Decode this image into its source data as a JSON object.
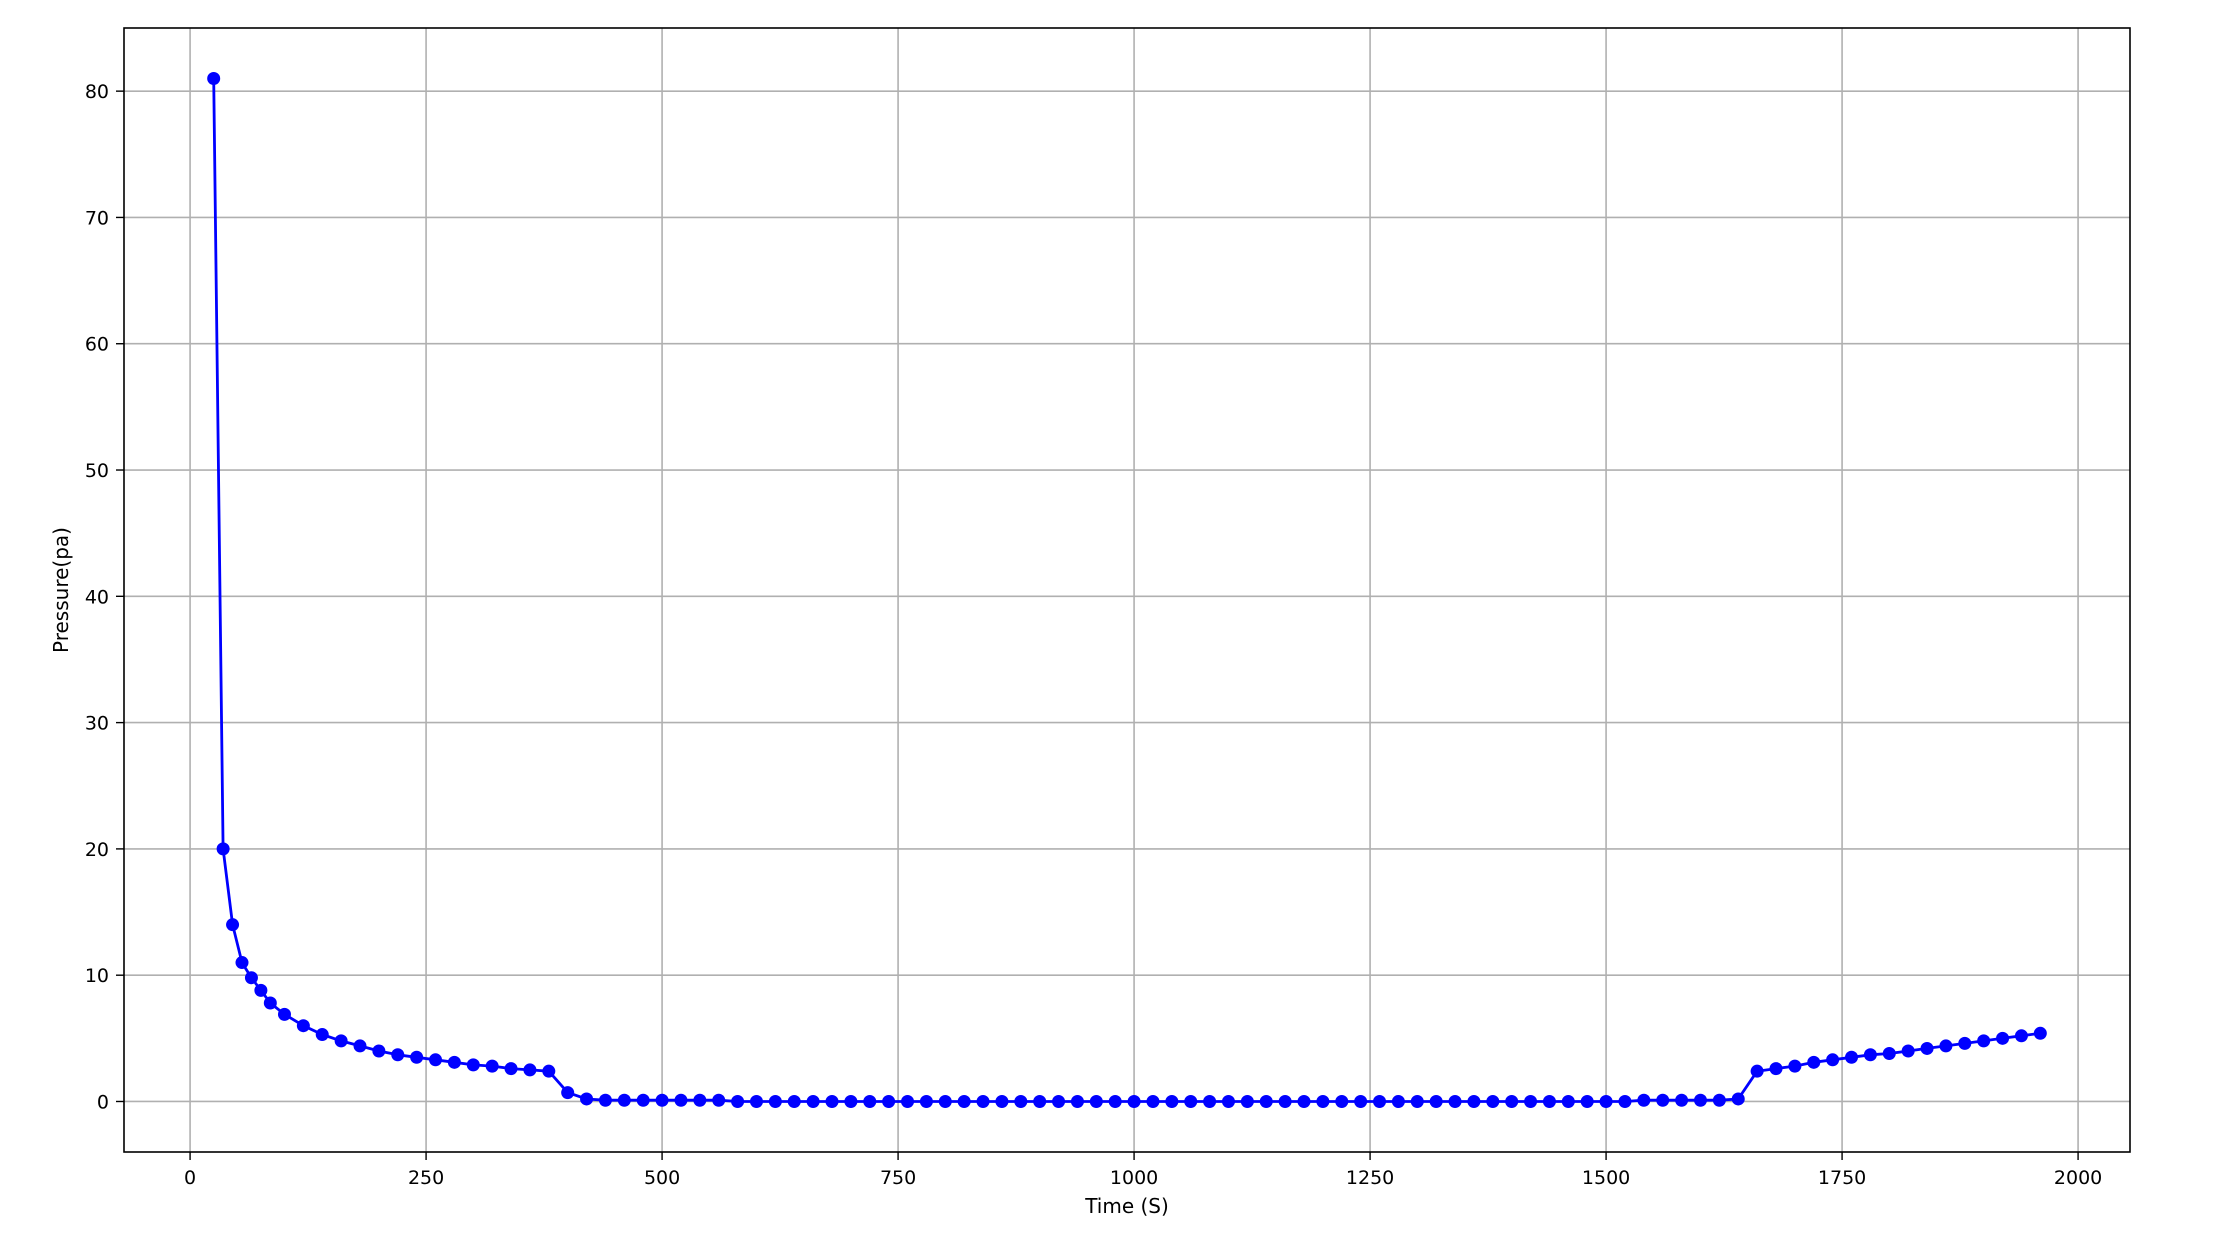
{
  "chart_data": {
    "type": "line",
    "title": "",
    "xlabel": "Time (S)",
    "ylabel": "Pressure(pa)",
    "xlim": [
      -70,
      2055
    ],
    "ylim": [
      -4,
      85
    ],
    "xticks": [
      0,
      250,
      500,
      750,
      1000,
      1250,
      1500,
      1750,
      2000
    ],
    "yticks": [
      0,
      10,
      20,
      30,
      40,
      50,
      60,
      70,
      80
    ],
    "grid": true,
    "legend": "none",
    "series": [
      {
        "color": "#0000ff",
        "marker": "circle",
        "x": [
          25,
          35,
          45,
          55,
          65,
          75,
          85,
          100,
          120,
          140,
          160,
          180,
          200,
          220,
          240,
          260,
          280,
          300,
          320,
          340,
          360,
          380,
          400,
          420,
          440,
          460,
          480,
          500,
          520,
          540,
          560,
          580,
          600,
          620,
          640,
          660,
          680,
          700,
          720,
          740,
          760,
          780,
          800,
          820,
          840,
          860,
          880,
          900,
          920,
          940,
          960,
          980,
          1000,
          1020,
          1040,
          1060,
          1080,
          1100,
          1120,
          1140,
          1160,
          1180,
          1200,
          1220,
          1240,
          1260,
          1280,
          1300,
          1320,
          1340,
          1360,
          1380,
          1400,
          1420,
          1440,
          1460,
          1480,
          1500,
          1520,
          1540,
          1560,
          1580,
          1600,
          1620,
          1640,
          1660,
          1680,
          1700,
          1720,
          1740,
          1760,
          1780,
          1800,
          1820,
          1840,
          1860,
          1880,
          1900,
          1920,
          1940,
          1960
        ],
        "y": [
          81,
          20,
          14,
          11,
          9.8,
          8.8,
          7.8,
          6.9,
          6.0,
          5.3,
          4.8,
          4.4,
          4.0,
          3.7,
          3.5,
          3.3,
          3.1,
          2.9,
          2.8,
          2.6,
          2.5,
          2.4,
          0.7,
          0.2,
          0.1,
          0.1,
          0.1,
          0.1,
          0.1,
          0.1,
          0.1,
          0.0,
          0.0,
          0.0,
          0.0,
          0.0,
          0.0,
          0.0,
          0.0,
          0.0,
          0.0,
          0.0,
          0.0,
          0.0,
          0.0,
          0.0,
          0.0,
          0.0,
          0.0,
          0.0,
          0.0,
          0.0,
          0.0,
          0.0,
          0.0,
          0.0,
          0.0,
          0.0,
          0.0,
          0.0,
          0.0,
          0.0,
          0.0,
          0.0,
          0.0,
          0.0,
          0.0,
          0.0,
          0.0,
          0.0,
          0.0,
          0.0,
          0.0,
          0.0,
          0.0,
          0.0,
          0.0,
          0.0,
          0.0,
          0.1,
          0.1,
          0.1,
          0.1,
          0.1,
          0.2,
          2.4,
          2.6,
          2.8,
          3.1,
          3.3,
          3.5,
          3.7,
          3.8,
          4.0,
          4.2,
          4.4,
          4.6,
          4.8,
          5.0,
          5.2,
          5.4
        ]
      }
    ]
  }
}
